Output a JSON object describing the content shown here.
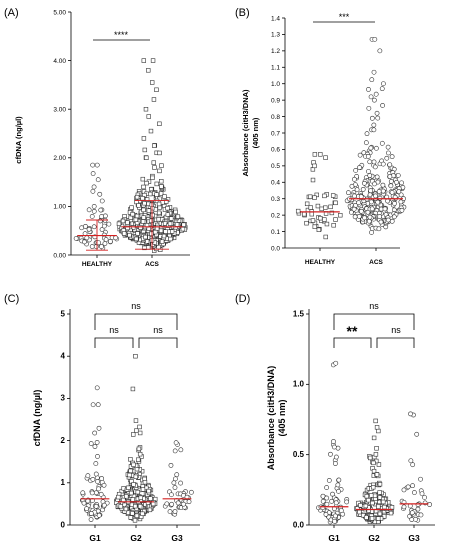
{
  "chart_data": [
    {
      "type": "scatter",
      "panel_label": "(A)",
      "title": "",
      "xlabel": "",
      "ylabel": "cfDNA (ng/µl)",
      "ylim": [
        0,
        5
      ],
      "yticks": [
        "0.00",
        "1.00",
        "2.00",
        "3.00",
        "4.00",
        "5.00"
      ],
      "categories": [
        "HEALTHY",
        "ACS"
      ],
      "marker": "circle/square",
      "series": [
        {
          "category": "HEALTHY",
          "n": 55,
          "median": 0.4,
          "error_low": 0.1,
          "error_high": 0.72,
          "max": 1.85,
          "values_highlight": [
            1.85,
            1.4,
            1.25,
            1.0
          ]
        },
        {
          "category": "ACS",
          "n": 420,
          "median": 0.58,
          "error_low": 0.12,
          "error_high": 1.12,
          "max": 4.0,
          "values_highlight": [
            4.0,
            3.8,
            3.55,
            3.4,
            3.2,
            3.0,
            2.85,
            2.7,
            2.55,
            2.4,
            2.25,
            2.1,
            2.0,
            1.9,
            1.8
          ]
        }
      ],
      "significance": [
        "****"
      ]
    },
    {
      "type": "scatter",
      "panel_label": "(B)",
      "title": "",
      "xlabel": "",
      "ylabel": "Absorbance (citH3/DNA)",
      "ylabel_line2": "(405 nm)",
      "ylim": [
        0,
        1.4
      ],
      "yticks": [
        "0.0",
        "0.1",
        "0.2",
        "0.3",
        "0.4",
        "0.5",
        "0.6",
        "0.7",
        "0.8",
        "0.9",
        "1.0",
        "1.1",
        "1.2",
        "1.3",
        "1.4"
      ],
      "categories": [
        "HEALTHY",
        "ACS"
      ],
      "series": [
        {
          "category": "HEALTHY",
          "n": 45,
          "median": 0.22,
          "max": 0.57,
          "values_highlight": [
            0.57,
            0.55,
            0.52,
            0.5
          ]
        },
        {
          "category": "ACS",
          "n": 300,
          "median": 0.3,
          "max": 1.27,
          "values_highlight": [
            1.27,
            1.2,
            1.07,
            1.0,
            0.97,
            0.92,
            0.9,
            0.85,
            0.82
          ]
        }
      ],
      "significance": [
        "***"
      ]
    },
    {
      "type": "scatter",
      "panel_label": "(C)",
      "title": "",
      "xlabel": "",
      "ylabel": "cfDNA (ng/µl)",
      "ylim": [
        0,
        5
      ],
      "yticks": [
        "0",
        "1",
        "2",
        "3",
        "4",
        "5"
      ],
      "categories": [
        "G1",
        "G2",
        "G3"
      ],
      "series": [
        {
          "category": "G1",
          "n": 70,
          "median": 0.62,
          "max": 3.25
        },
        {
          "category": "G2",
          "n": 260,
          "median": 0.55,
          "max": 4.0
        },
        {
          "category": "G3",
          "n": 40,
          "median": 0.62,
          "max": 1.95
        }
      ],
      "significance": [
        "ns",
        "ns",
        "ns"
      ]
    },
    {
      "type": "scatter",
      "panel_label": "(D)",
      "title": "",
      "xlabel": "",
      "ylabel": "Absorbance (citH3/DNA)",
      "ylabel_line2": "(405 nm)",
      "ylim": [
        0,
        1.5
      ],
      "yticks": [
        "0.0",
        "0.5",
        "1.0",
        "1.5"
      ],
      "categories": [
        "G1",
        "G2",
        "G3"
      ],
      "series": [
        {
          "category": "G1",
          "n": 75,
          "median": 0.13,
          "max": 1.15
        },
        {
          "category": "G2",
          "n": 200,
          "median": 0.11,
          "max": 0.74
        },
        {
          "category": "G3",
          "n": 35,
          "median": 0.15,
          "max": 0.79
        }
      ],
      "significance": [
        "**",
        "ns",
        "ns"
      ]
    }
  ]
}
